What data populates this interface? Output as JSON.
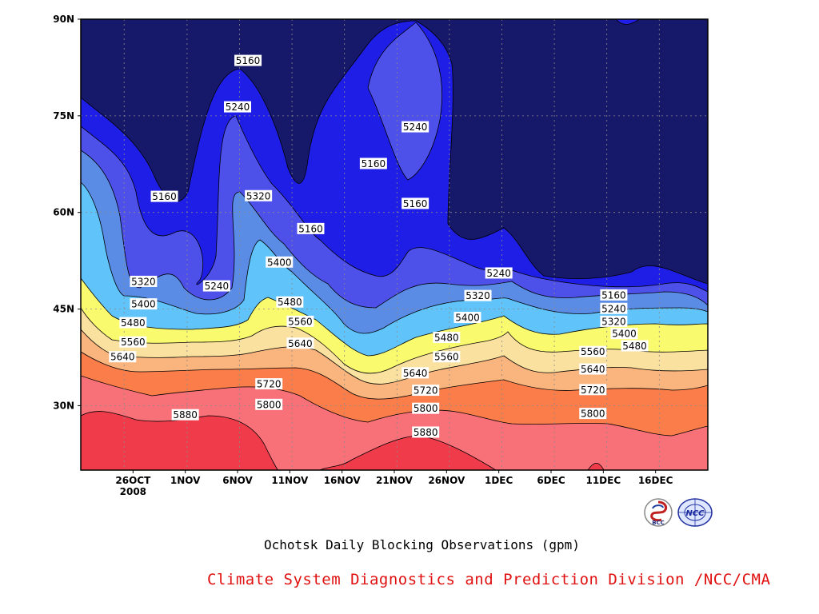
{
  "chart_data": {
    "type": "contour",
    "title": "Ochotsk Daily Blocking Observations (gpm)",
    "credit": "Climate System Diagnostics and Prediction Division /NCC/CMA",
    "x_tick_labels": [
      "26OCT",
      "1NOV",
      "6NOV",
      "11NOV",
      "16NOV",
      "21NOV",
      "26NOV",
      "1DEC",
      "6DEC",
      "11DEC",
      "16DEC"
    ],
    "x_year_label": "2008",
    "x_range": [
      "2008-10-21",
      "2008-12-20"
    ],
    "y_tick_labels": [
      "30N",
      "45N",
      "60N",
      "75N",
      "90N"
    ],
    "y_range": [
      20,
      90
    ],
    "grid": true,
    "contour_levels": [
      5160,
      5240,
      5320,
      5400,
      5480,
      5560,
      5640,
      5720,
      5800,
      5880
    ],
    "fill_colors": [
      "#16186a",
      "#1e1ee6",
      "#4e50ea",
      "#5a8ce6",
      "#60c3fa",
      "#fafa6e",
      "#fae1a0",
      "#fab47d",
      "#fa7d4a",
      "#f87078",
      "#f03c4a"
    ],
    "contour_labels": [
      {
        "text": "5160",
        "date": "2008-11-06",
        "lat": 83.6
      },
      {
        "text": "5240",
        "date": "2008-11-05",
        "lat": 76.4
      },
      {
        "text": "5160",
        "date": "2008-10-29",
        "lat": 62.5
      },
      {
        "text": "5320",
        "date": "2008-11-07",
        "lat": 62.6
      },
      {
        "text": "5160",
        "date": "2008-11-18",
        "lat": 67.6
      },
      {
        "text": "5240",
        "date": "2008-11-22",
        "lat": 73.3
      },
      {
        "text": "5160",
        "date": "2008-11-22",
        "lat": 61.4
      },
      {
        "text": "5160",
        "date": "2008-11-12",
        "lat": 57.5
      },
      {
        "text": "5400",
        "date": "2008-11-09",
        "lat": 52.3
      },
      {
        "text": "5240",
        "date": "2008-11-03",
        "lat": 48.6
      },
      {
        "text": "5320",
        "date": "2008-10-27",
        "lat": 49.3
      },
      {
        "text": "5480",
        "date": "2008-11-10",
        "lat": 46.1
      },
      {
        "text": "5400",
        "date": "2008-10-27",
        "lat": 45.8
      },
      {
        "text": "5560",
        "date": "2008-11-11",
        "lat": 43.1
      },
      {
        "text": "5480",
        "date": "2008-10-26",
        "lat": 42.9
      },
      {
        "text": "5640",
        "date": "2008-11-11",
        "lat": 39.7
      },
      {
        "text": "5560",
        "date": "2008-10-26",
        "lat": 39.9
      },
      {
        "text": "5640",
        "date": "2008-10-25",
        "lat": 37.6
      },
      {
        "text": "5720",
        "date": "2008-11-08",
        "lat": 33.4
      },
      {
        "text": "5800",
        "date": "2008-11-08",
        "lat": 30.2
      },
      {
        "text": "5880",
        "date": "2008-10-31",
        "lat": 28.6
      },
      {
        "text": "5240",
        "date": "2008-11-30",
        "lat": 50.6
      },
      {
        "text": "5320",
        "date": "2008-11-28",
        "lat": 47.1
      },
      {
        "text": "5400",
        "date": "2008-11-27",
        "lat": 43.7
      },
      {
        "text": "5480",
        "date": "2008-11-25",
        "lat": 40.6
      },
      {
        "text": "5560",
        "date": "2008-11-25",
        "lat": 37.6
      },
      {
        "text": "5640",
        "date": "2008-11-22",
        "lat": 35.1
      },
      {
        "text": "5720",
        "date": "2008-11-23",
        "lat": 32.4
      },
      {
        "text": "5800",
        "date": "2008-11-23",
        "lat": 29.6
      },
      {
        "text": "5880",
        "date": "2008-11-23",
        "lat": 25.9
      },
      {
        "text": "5160",
        "date": "2008-12-11",
        "lat": 47.2
      },
      {
        "text": "5240",
        "date": "2008-12-11",
        "lat": 45.1
      },
      {
        "text": "5320",
        "date": "2008-12-11",
        "lat": 43.1
      },
      {
        "text": "5400",
        "date": "2008-12-12",
        "lat": 41.2
      },
      {
        "text": "5480",
        "date": "2008-12-13",
        "lat": 39.3
      },
      {
        "text": "5560",
        "date": "2008-12-09",
        "lat": 38.4
      },
      {
        "text": "5640",
        "date": "2008-12-09",
        "lat": 35.7
      },
      {
        "text": "5720",
        "date": "2008-12-09",
        "lat": 32.5
      },
      {
        "text": "5800",
        "date": "2008-12-09",
        "lat": 28.8
      }
    ]
  },
  "logos": {
    "left": {
      "name": "bcc-logo",
      "text": "BCC"
    },
    "right": {
      "name": "ncc-logo",
      "text": "NCC"
    }
  }
}
